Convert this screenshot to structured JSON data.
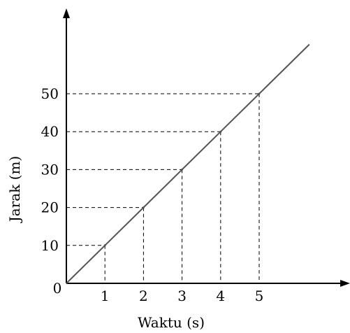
{
  "chart_data": {
    "type": "line",
    "title": "",
    "xlabel": "Waktu (s)",
    "ylabel": "Jarak (m)",
    "origin_label": "0",
    "x_ticks": [
      "1",
      "2",
      "3",
      "4",
      "5"
    ],
    "y_ticks": [
      "10",
      "20",
      "30",
      "40",
      "50"
    ],
    "xlim": [
      0,
      6.3
    ],
    "ylim": [
      0,
      60.5
    ],
    "grid": false,
    "guide_lines": "dashed projections from each marked point to both axes",
    "series": [
      {
        "x": [
          0,
          1,
          2,
          3,
          4,
          5,
          6.3
        ],
        "y": [
          0,
          10,
          20,
          30,
          40,
          50,
          63
        ],
        "marked_points": [
          1,
          2,
          3,
          4,
          5
        ]
      }
    ],
    "colors": {
      "axis": "#000000",
      "line": "#555555",
      "guide": "#000000"
    }
  }
}
